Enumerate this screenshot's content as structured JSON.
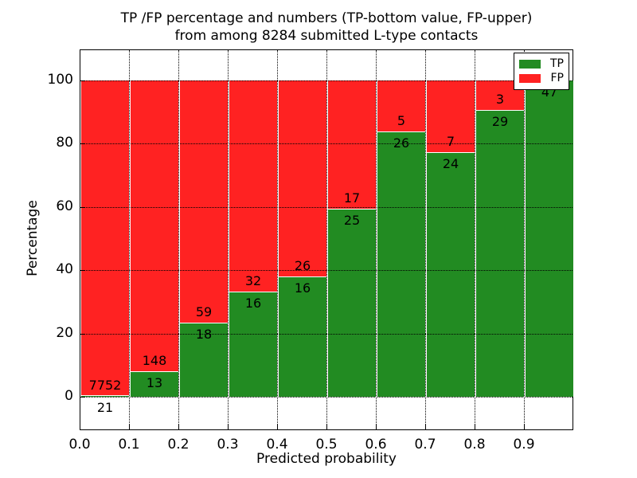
{
  "figure": {
    "title_line1": "TP /FP percentage and numbers (TP-bottom value, FP-upper)",
    "title_line2": "from among 8284 submitted L-type contacts",
    "xlabel": "Predicted probability",
    "ylabel": "Percentage",
    "background_color": "#ffffff"
  },
  "legend": {
    "position": "upper right",
    "entries": [
      {
        "label": "TP",
        "color": "#228b22"
      },
      {
        "label": "FP",
        "color": "#ff2222"
      }
    ]
  },
  "chart_data": {
    "type": "bar",
    "stacked": true,
    "normalized_to_percent": true,
    "title": "TP /FP percentage and numbers (TP-bottom value, FP-upper) from among 8284 submitted L-type contacts",
    "xlabel": "Predicted probability",
    "ylabel": "Percentage",
    "total_submitted_contacts": 8284,
    "bin_width": 0.1,
    "x_tick_labels": [
      "0.0",
      "0.1",
      "0.2",
      "0.3",
      "0.4",
      "0.5",
      "0.6",
      "0.7",
      "0.8",
      "0.9"
    ],
    "y_ticks": [
      0,
      20,
      40,
      60,
      80,
      100
    ],
    "ylim": [
      -10.8,
      109.6
    ],
    "xlim": [
      0.0,
      1.0
    ],
    "grid": true,
    "grid_style": "dotted",
    "bar_edge_color": "#ffffff",
    "tp_color": "#228b22",
    "fp_color": "#ff2222",
    "bins": [
      {
        "x_start": 0.0,
        "tp": 21,
        "fp": 7752,
        "tp_percent": 0.27
      },
      {
        "x_start": 0.1,
        "tp": 13,
        "fp": 148,
        "tp_percent": 8.07
      },
      {
        "x_start": 0.2,
        "tp": 18,
        "fp": 59,
        "tp_percent": 23.38
      },
      {
        "x_start": 0.3,
        "tp": 16,
        "fp": 32,
        "tp_percent": 33.33
      },
      {
        "x_start": 0.4,
        "tp": 16,
        "fp": 26,
        "tp_percent": 38.1
      },
      {
        "x_start": 0.5,
        "tp": 25,
        "fp": 17,
        "tp_percent": 59.52
      },
      {
        "x_start": 0.6,
        "tp": 26,
        "fp": 5,
        "tp_percent": 83.87
      },
      {
        "x_start": 0.7,
        "tp": 24,
        "fp": 7,
        "tp_percent": 77.42
      },
      {
        "x_start": 0.8,
        "tp": 29,
        "fp": 3,
        "tp_percent": 90.63
      },
      {
        "x_start": 0.9,
        "tp": 47,
        "fp": 0,
        "tp_percent": 100.0
      }
    ],
    "series": [
      {
        "name": "TP",
        "color": "#228b22",
        "values": [
          21,
          13,
          18,
          16,
          16,
          25,
          26,
          24,
          29,
          47
        ]
      },
      {
        "name": "FP",
        "color": "#ff2222",
        "values": [
          7752,
          148,
          59,
          32,
          26,
          17,
          5,
          7,
          3,
          0
        ]
      }
    ]
  }
}
